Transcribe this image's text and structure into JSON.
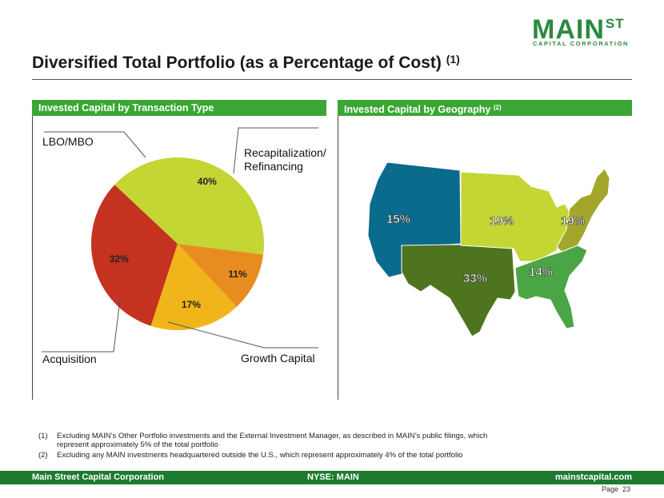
{
  "logo": {
    "main": "MAIN",
    "st": "ST",
    "sub": "CAPITAL CORPORATION"
  },
  "title": {
    "text": "Diversified Total Portfolio (as a Percentage of Cost)",
    "note": "(1)"
  },
  "left_panel": {
    "header": "Invested Capital by Transaction Type",
    "labels": {
      "lbo": "LBO/MBO",
      "recap_line1": "Recapitalization/",
      "recap_line2": "Refinancing",
      "acquisition": "Acquisition",
      "growth": "Growth Capital"
    }
  },
  "right_panel": {
    "header": "Invested Capital by Geography",
    "note": "(2)",
    "regions": [
      {
        "name": "West",
        "pct": "15%",
        "color": "#0a6b8c"
      },
      {
        "name": "Midwest",
        "pct": "19%",
        "color": "#c3d634"
      },
      {
        "name": "Northeast",
        "pct": "19%",
        "color": "#a3a62a"
      },
      {
        "name": "Southwest",
        "pct": "33%",
        "color": "#4f7420"
      },
      {
        "name": "Southeast",
        "pct": "14%",
        "color": "#4aa544"
      }
    ]
  },
  "chart_data": {
    "type": "pie",
    "title": "Invested Capital by Transaction Type",
    "slices": [
      {
        "label": "LBO/MBO",
        "value": 32,
        "text": "32%",
        "color": "#c5321f"
      },
      {
        "label": "Recapitalization/Refinancing",
        "value": 40,
        "text": "40%",
        "color": "#c3d634"
      },
      {
        "label": "Growth Capital",
        "value": 11,
        "text": "11%",
        "color": "#e98c20"
      },
      {
        "label": "Acquisition",
        "value": 17,
        "text": "17%",
        "color": "#f0b51a"
      }
    ]
  },
  "footnotes": [
    {
      "num": "(1)",
      "text": "Excluding MAIN’s Other Portfolio investments and the External Investment Manager, as described in MAIN’s public filings, which represent approximately 5% of the total portfolio"
    },
    {
      "num": "(2)",
      "text": "Excluding any MAIN investments headquartered outside the U.S., which represent approximately 4% of the total portfolio"
    }
  ],
  "footer": {
    "left": "Main Street Capital Corporation",
    "center": "NYSE: MAIN",
    "right": "mainstcapital.com"
  },
  "page": {
    "label": "Page",
    "number": "23"
  }
}
